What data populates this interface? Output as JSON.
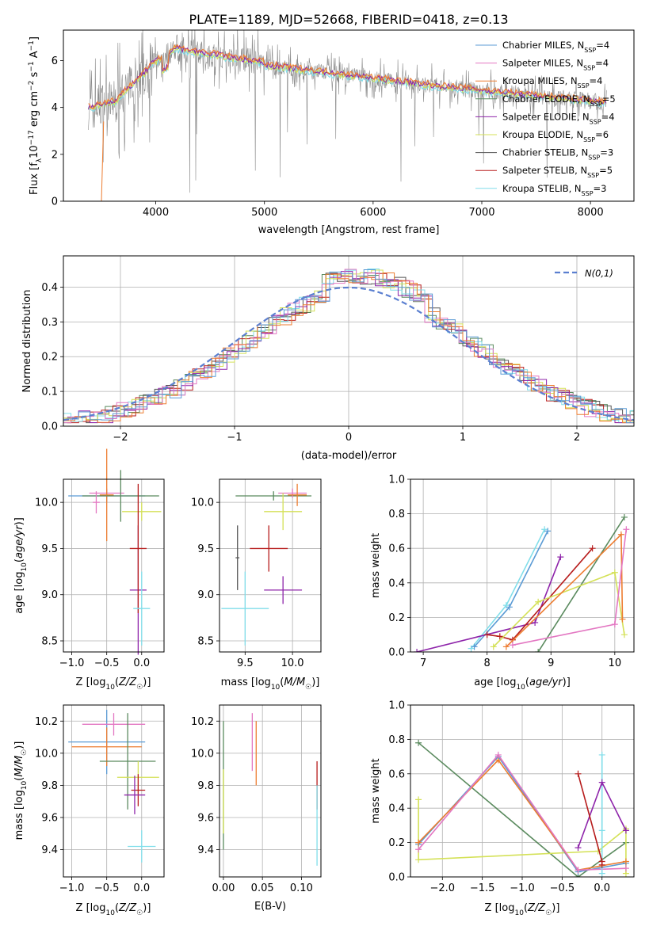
{
  "title": "PLATE=1189, MJD=52668, FIBERID=0418, z=0.13",
  "colors": [
    "#5b9bd5",
    "#ed7d31",
    "#2e7d32",
    "#7b1fa2",
    "#d4e157",
    "#555555",
    "#b71c1c",
    "#80deea",
    "#e377c2"
  ],
  "chart_data": [
    {
      "id": "spectrum",
      "type": "line",
      "xlabel": "wavelength [Angstrom, rest frame]",
      "ylabel": "Flux [f",
      "xlim": [
        3150,
        8400
      ],
      "ylim": [
        0,
        7.3
      ],
      "xticks": [
        4000,
        5000,
        6000,
        7000,
        8000
      ],
      "yticks": [
        0,
        2,
        4,
        6
      ],
      "grid": false,
      "legend": "upper right",
      "series": [
        {
          "label": "Chabrier MILES, N_SSP=4",
          "color": "#5b9bd5"
        },
        {
          "label": "Salpeter MILES, N_SSP=4",
          "color": "#e377c2"
        },
        {
          "label": "Kroupa MILES, N_SSP=4",
          "color": "#ed7d31"
        },
        {
          "label": "Chabrier ELODIE, N_SSP=5",
          "color": "#5a8a5e"
        },
        {
          "label": "Salpeter ELODIE, N_SSP=4",
          "color": "#8e24aa"
        },
        {
          "label": "Kroupa ELODIE, N_SSP=6",
          "color": "#d4e157"
        },
        {
          "label": "Chabrier STELIB, N_SSP=3",
          "color": "#555555"
        },
        {
          "label": "Salpeter STELIB, N_SSP=5",
          "color": "#b71c1c"
        },
        {
          "label": "Kroupa STELIB, N_SSP=3",
          "color": "#80deea"
        }
      ]
    },
    {
      "id": "residuals",
      "type": "histogram",
      "xlabel": "(data-model)/error",
      "ylabel": "Normed distribution",
      "xlim": [
        -2.5,
        2.5
      ],
      "ylim": [
        0,
        0.49
      ],
      "xticks": [
        -2,
        -1,
        0,
        1,
        2
      ],
      "yticks": [
        0.0,
        0.1,
        0.2,
        0.3,
        0.4
      ],
      "grid": true,
      "legend": "upper right",
      "legend_label": "N(0,1)",
      "gauss_color": "#5b7fd0"
    },
    {
      "id": "age_vs_Z",
      "type": "errorbar",
      "xlabel": "Z [log10(Z/Z☉)]",
      "ylabel": "age [log10(age/yr)]",
      "xlim": [
        -1.12,
        0.32
      ],
      "ylim": [
        8.38,
        10.25
      ],
      "xticks": [
        -1.0,
        -0.5,
        0.0
      ],
      "yticks": [
        8.5,
        9.0,
        9.5,
        10.0
      ],
      "points": [
        {
          "x": -0.5,
          "y": 10.07,
          "xerr": 0.55,
          "yerr": 0.07,
          "c": "#5b9bd5"
        },
        {
          "x": -0.5,
          "y": 10.1,
          "xerr": 0.25,
          "yerr": 0.05,
          "c": "#e377c2"
        },
        {
          "x": -0.5,
          "y": 10.08,
          "xerr": 0.1,
          "yerr": 0.5,
          "c": "#ed7d31"
        },
        {
          "x": -0.3,
          "y": 10.07,
          "xerr": 0.55,
          "yerr": 0.28,
          "c": "#5a8a5e"
        },
        {
          "x": 0.0,
          "y": 9.9,
          "xerr": 0.28,
          "yerr": 0.1,
          "c": "#d4e157"
        },
        {
          "x": -0.05,
          "y": 9.05,
          "xerr": 0.12,
          "yerr": 0.7,
          "c": "#8e24aa"
        },
        {
          "x": -0.05,
          "y": 9.5,
          "xerr": 0.12,
          "yerr": 0.7,
          "c": "#b71c1c"
        },
        {
          "x": 0.0,
          "y": 8.85,
          "xerr": 0.12,
          "yerr": 0.4,
          "c": "#80deea"
        },
        {
          "x": -0.65,
          "y": 10.0,
          "xerr": 0.05,
          "yerr": 0.12,
          "c": "#e377c2"
        }
      ]
    },
    {
      "id": "age_vs_mass",
      "type": "errorbar",
      "xlabel": "mass [log10(M/M☉)]",
      "ylabel": "",
      "xlim": [
        9.23,
        10.3
      ],
      "ylim": [
        8.38,
        10.25
      ],
      "xticks": [
        9.5,
        10.0
      ],
      "yticks": [
        8.5,
        9.0,
        9.5,
        10.0
      ],
      "points": [
        {
          "x": 9.8,
          "y": 10.07,
          "xerr": 0.4,
          "yerr": 0.05,
          "c": "#5a8a5e"
        },
        {
          "x": 10.0,
          "y": 10.1,
          "xerr": 0.15,
          "yerr": 0.05,
          "c": "#e377c2"
        },
        {
          "x": 10.05,
          "y": 10.08,
          "xerr": 0.1,
          "yerr": 0.12,
          "c": "#ed7d31"
        },
        {
          "x": 9.9,
          "y": 9.9,
          "xerr": 0.2,
          "yerr": 0.2,
          "c": "#d4e157"
        },
        {
          "x": 9.75,
          "y": 9.5,
          "xerr": 0.2,
          "yerr": 0.25,
          "c": "#b71c1c"
        },
        {
          "x": 9.9,
          "y": 9.05,
          "xerr": 0.2,
          "yerr": 0.15,
          "c": "#8e24aa"
        },
        {
          "x": 9.5,
          "y": 8.85,
          "xerr": 0.25,
          "yerr": 0.4,
          "c": "#80deea"
        },
        {
          "x": 9.42,
          "y": 9.4,
          "xerr": 0.02,
          "yerr": 0.35,
          "c": "#555555"
        }
      ]
    },
    {
      "id": "weight_vs_age",
      "type": "line",
      "xlabel": "age [log10(age/yr)]",
      "ylabel": "mass weight",
      "xlim": [
        6.8,
        10.3
      ],
      "ylim": [
        0,
        1.0
      ],
      "xticks": [
        7,
        8,
        9,
        10
      ],
      "yticks": [
        0.0,
        0.2,
        0.4,
        0.6,
        0.8,
        1.0
      ],
      "series": [
        {
          "c": "#80deea",
          "x": [
            7.75,
            8.3,
            8.9
          ],
          "y": [
            0.02,
            0.27,
            0.71
          ]
        },
        {
          "c": "#5b9bd5",
          "x": [
            7.8,
            8.35,
            8.95
          ],
          "y": [
            0.03,
            0.26,
            0.7
          ]
        },
        {
          "c": "#8e24aa",
          "x": [
            6.9,
            8.75,
            9.15
          ],
          "y": [
            0.0,
            0.17,
            0.55
          ]
        },
        {
          "c": "#b71c1c",
          "x": [
            8.0,
            8.2,
            8.4,
            9.65
          ],
          "y": [
            0.1,
            0.09,
            0.07,
            0.6
          ]
        },
        {
          "c": "#5a8a5e",
          "x": [
            8.8,
            10.15
          ],
          "y": [
            0.0,
            0.78
          ]
        },
        {
          "c": "#d4e157",
          "x": [
            8.1,
            8.8,
            10.0,
            10.15
          ],
          "y": [
            0.03,
            0.29,
            0.46,
            0.1
          ]
        },
        {
          "c": "#ed7d31",
          "x": [
            8.3,
            10.1,
            10.12
          ],
          "y": [
            0.03,
            0.68,
            0.19
          ]
        },
        {
          "c": "#e377c2",
          "x": [
            8.4,
            10.0,
            10.18
          ],
          "y": [
            0.04,
            0.16,
            0.71
          ]
        }
      ]
    },
    {
      "id": "mass_vs_Z",
      "type": "errorbar",
      "xlabel": "Z [log10(Z/Z☉)]",
      "ylabel": "mass [log10(M/M☉)]",
      "xlim": [
        -1.12,
        0.32
      ],
      "ylim": [
        9.23,
        10.3
      ],
      "xticks": [
        -1.0,
        -0.5,
        0.0
      ],
      "yticks": [
        9.4,
        9.6,
        9.8,
        10.0,
        10.2
      ],
      "points": [
        {
          "x": -0.5,
          "y": 10.07,
          "xerr": 0.55,
          "yerr": 0.2,
          "c": "#5b9bd5"
        },
        {
          "x": -0.4,
          "y": 10.18,
          "xerr": 0.45,
          "yerr": 0.07,
          "c": "#e377c2"
        },
        {
          "x": -0.5,
          "y": 10.04,
          "xerr": 0.5,
          "yerr": 0.12,
          "c": "#ed7d31"
        },
        {
          "x": -0.2,
          "y": 9.95,
          "xerr": 0.4,
          "yerr": 0.3,
          "c": "#5a8a5e"
        },
        {
          "x": -0.05,
          "y": 9.85,
          "xerr": 0.3,
          "yerr": 0.1,
          "c": "#d4e157"
        },
        {
          "x": -0.05,
          "y": 9.77,
          "xerr": 0.1,
          "yerr": 0.1,
          "c": "#b71c1c"
        },
        {
          "x": -0.1,
          "y": 9.74,
          "xerr": 0.15,
          "yerr": 0.12,
          "c": "#8e24aa"
        },
        {
          "x": 0.0,
          "y": 9.42,
          "xerr": 0.2,
          "yerr": 0.1,
          "c": "#80deea"
        }
      ]
    },
    {
      "id": "mass_vs_ebv",
      "type": "errorbar",
      "xlabel": "E(B-V)",
      "ylabel": "",
      "xlim": [
        -0.005,
        0.125
      ],
      "ylim": [
        9.23,
        10.3
      ],
      "xticks": [
        0.0,
        0.05,
        0.1
      ],
      "yticks": [
        9.4,
        9.6,
        9.8,
        10.0,
        10.2
      ],
      "points": [
        {
          "x": 0.0,
          "y": 9.8,
          "xerr": 0,
          "yerr": 0.4,
          "c": "#5a8a5e"
        },
        {
          "x": 0.0,
          "y": 9.7,
          "xerr": 0,
          "yerr": 0.2,
          "c": "#d4e157"
        },
        {
          "x": 0.037,
          "y": 10.07,
          "xerr": 0,
          "yerr": 0.18,
          "c": "#e377c2"
        },
        {
          "x": 0.042,
          "y": 10.0,
          "xerr": 0,
          "yerr": 0.2,
          "c": "#ed7d31"
        },
        {
          "x": 0.12,
          "y": 9.8,
          "xerr": 0,
          "yerr": 0.15,
          "c": "#b71c1c"
        },
        {
          "x": 0.12,
          "y": 9.55,
          "xerr": 0,
          "yerr": 0.25,
          "c": "#80deea"
        }
      ]
    },
    {
      "id": "weight_vs_Z",
      "type": "line",
      "xlabel": "Z [log10(Z/Z☉)]",
      "ylabel": "mass weight",
      "xlim": [
        -2.4,
        0.4
      ],
      "ylim": [
        0,
        1.0
      ],
      "xticks": [
        -2.0,
        -1.5,
        -1.0,
        -0.5,
        0.0
      ],
      "yticks": [
        0.0,
        0.2,
        0.4,
        0.6,
        0.8,
        1.0
      ],
      "series": [
        {
          "c": "#5a8a5e",
          "x": [
            -2.3,
            -0.3,
            0.3
          ],
          "y": [
            0.78,
            0.0,
            0.2
          ]
        },
        {
          "c": "#d4e157",
          "x": [
            -2.3,
            -2.3,
            -0.05,
            0.3,
            0.3
          ],
          "y": [
            0.45,
            0.1,
            0.15,
            0.28,
            0.02
          ]
        },
        {
          "c": "#5b9bd5",
          "x": [
            -2.3,
            -1.3,
            -0.3,
            0.3
          ],
          "y": [
            0.19,
            0.7,
            0.03,
            0.08
          ]
        },
        {
          "c": "#ed7d31",
          "x": [
            -2.3,
            -1.3,
            -0.3,
            0.3
          ],
          "y": [
            0.2,
            0.68,
            0.04,
            0.09
          ]
        },
        {
          "c": "#e377c2",
          "x": [
            -2.3,
            -1.3,
            -0.3,
            0.3
          ],
          "y": [
            0.16,
            0.71,
            0.04,
            0.05
          ]
        },
        {
          "c": "#80deea",
          "x": [
            0.0,
            0.0,
            0.0
          ],
          "y": [
            0.71,
            0.27,
            0.02
          ]
        },
        {
          "c": "#8e24aa",
          "x": [
            -0.3,
            0.0,
            0.3
          ],
          "y": [
            0.17,
            0.55,
            0.27
          ]
        },
        {
          "c": "#b71c1c",
          "x": [
            -0.3,
            0.0,
            0.0
          ],
          "y": [
            0.6,
            0.09,
            0.07
          ]
        }
      ]
    }
  ]
}
